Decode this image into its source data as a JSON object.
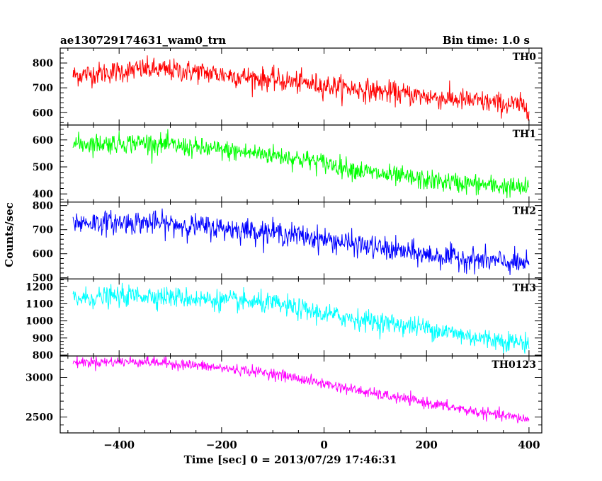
{
  "header": {
    "title": "ae130729174631_wam0_trn",
    "bin_time": "Bin time: 1.0 s"
  },
  "chart_data": {
    "type": "line",
    "title": "ae130729174631_wam0_trn",
    "xlabel": "Time [sec] 0 = 2013/07/29 17:46:31",
    "ylabel": "Counts/sec",
    "xlim": [
      -515,
      425
    ],
    "x_start": -490,
    "x_end": 400,
    "x_ticks": [
      -400,
      -200,
      0,
      200,
      400
    ],
    "x_tick_labels": [
      "−400",
      "−200",
      "0",
      "200",
      "400"
    ],
    "panels": [
      {
        "name": "TH0",
        "color": "#ff0000",
        "ylim": [
          550,
          860
        ],
        "ticks": [
          600,
          700,
          800
        ],
        "tick_labels": [
          "600",
          "700",
          "800"
        ],
        "trend": [
          [
            -490,
            750
          ],
          [
            -350,
            775
          ],
          [
            -250,
            765
          ],
          [
            0,
            710
          ],
          [
            200,
            665
          ],
          [
            400,
            625
          ]
        ],
        "noise": 30
      },
      {
        "name": "TH1",
        "color": "#00ff00",
        "ylim": [
          370,
          655
        ],
        "ticks": [
          400,
          500,
          600
        ],
        "tick_labels": [
          "400",
          "500",
          "600"
        ],
        "trend": [
          [
            -490,
            585
          ],
          [
            -350,
            590
          ],
          [
            -250,
            570
          ],
          [
            -100,
            545
          ],
          [
            0,
            515
          ],
          [
            100,
            475
          ],
          [
            200,
            450
          ],
          [
            400,
            420
          ]
        ],
        "noise": 25
      },
      {
        "name": "TH2",
        "color": "#0000ff",
        "ylim": [
          495,
          815
        ],
        "ticks": [
          500,
          600,
          700,
          800
        ],
        "tick_labels": [
          "500",
          "600",
          "700",
          "800"
        ],
        "trend": [
          [
            -490,
            730
          ],
          [
            -350,
            730
          ],
          [
            -250,
            715
          ],
          [
            -100,
            690
          ],
          [
            0,
            660
          ],
          [
            100,
            625
          ],
          [
            200,
            595
          ],
          [
            400,
            555
          ]
        ],
        "noise": 32
      },
      {
        "name": "TH3",
        "color": "#00ffff",
        "ylim": [
          795,
          1245
        ],
        "ticks": [
          800,
          900,
          1000,
          1100,
          1200
        ],
        "tick_labels": [
          "800",
          "900",
          "1000",
          "1100",
          "1200"
        ],
        "trend": [
          [
            -490,
            1130
          ],
          [
            -350,
            1150
          ],
          [
            -250,
            1130
          ],
          [
            -100,
            1100
          ],
          [
            0,
            1040
          ],
          [
            100,
            995
          ],
          [
            200,
            960
          ],
          [
            300,
            900
          ],
          [
            400,
            870
          ]
        ],
        "noise": 40
      },
      {
        "name": "TH0123",
        "color": "#ff00ff",
        "ylim": [
          2300,
          3270
        ],
        "ticks": [
          2500,
          3000
        ],
        "tick_labels": [
          "2500",
          "3000"
        ],
        "trend": [
          [
            -490,
            3190
          ],
          [
            -350,
            3200
          ],
          [
            -250,
            3150
          ],
          [
            -100,
            3050
          ],
          [
            0,
            2920
          ],
          [
            100,
            2790
          ],
          [
            200,
            2680
          ],
          [
            300,
            2560
          ],
          [
            400,
            2470
          ]
        ],
        "noise": 45
      }
    ]
  }
}
